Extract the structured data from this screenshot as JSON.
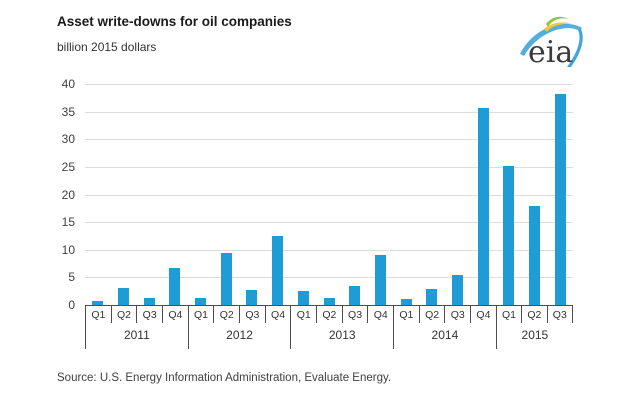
{
  "header": {
    "title": "Asset write-downs for oil companies",
    "units": "billion 2015 dollars"
  },
  "logo": {
    "text": "eia"
  },
  "chart_data": {
    "type": "bar",
    "title": "Asset write-downs for oil companies",
    "ylabel": "billion 2015 dollars",
    "xlabel": "",
    "ylim": [
      0,
      40
    ],
    "ytick_interval": 5,
    "yticks": [
      0,
      5,
      10,
      15,
      20,
      25,
      30,
      35,
      40
    ],
    "grid": true,
    "legend": "none",
    "groups": [
      {
        "year": "2011",
        "quarters": [
          "Q1",
          "Q2",
          "Q3",
          "Q4"
        ],
        "values": [
          0.8,
          3.1,
          1.2,
          6.7
        ]
      },
      {
        "year": "2012",
        "quarters": [
          "Q1",
          "Q2",
          "Q3",
          "Q4"
        ],
        "values": [
          1.3,
          9.4,
          2.8,
          12.5
        ]
      },
      {
        "year": "2013",
        "quarters": [
          "Q1",
          "Q2",
          "Q3",
          "Q4"
        ],
        "values": [
          2.6,
          1.2,
          3.5,
          9.1
        ]
      },
      {
        "year": "2014",
        "quarters": [
          "Q1",
          "Q2",
          "Q3",
          "Q4"
        ],
        "values": [
          1.1,
          2.9,
          5.5,
          35.7
        ]
      },
      {
        "year": "2015",
        "quarters": [
          "Q1",
          "Q2",
          "Q3"
        ],
        "values": [
          25.2,
          18.0,
          38.2
        ]
      }
    ]
  },
  "footer": {
    "source": "Source:  U.S. Energy Information Administration, Evaluate Energy."
  },
  "colors": {
    "bar": "#1f9cd5",
    "gridline": "#dcdcdc",
    "axis": "#4d4d4d",
    "text": "#404040",
    "logo_blue": "#41a5d9",
    "logo_green": "#8cc63f",
    "logo_yellow": "#f2ca30",
    "logo_text": "#3b3b3b"
  }
}
